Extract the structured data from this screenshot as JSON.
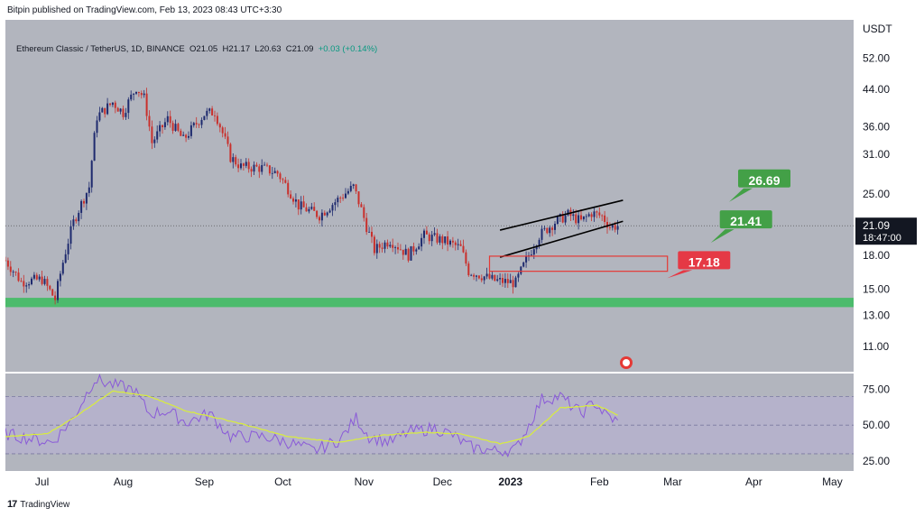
{
  "header": {
    "published": "Bitpin published on TradingView.com, Feb 13, 2023 08:43 UTC+3:30"
  },
  "legend": {
    "symbol": "Ethereum Classic / TetherUS, 1D, BINANCE",
    "o_label": "O",
    "o": "21.05",
    "h_label": "H",
    "h": "21.17",
    "l_label": "L",
    "l": "20.63",
    "c_label": "C",
    "c": "21.09",
    "change": "+0.03 (+0.14%)"
  },
  "footer": {
    "brand": "TradingView"
  },
  "colors": {
    "up": "#1e2a6e",
    "down": "#c9302c",
    "green_zone": "#4cbb6c",
    "red_box": "#e53935",
    "rsi_line": "#8a5ad8",
    "rsi_ma": "#d9ee3a",
    "label_green": "#43a047",
    "label_red": "#e53945"
  },
  "chart_data": [
    {
      "type": "candlestick",
      "pane": "price",
      "y_axis": {
        "title": "USDT",
        "scale": "log",
        "ticks": [
          "52.00",
          "44.00",
          "36.00",
          "31.00",
          "25.00",
          "21.09",
          "18.00",
          "15.00",
          "13.00",
          "11.00"
        ],
        "range": [
          9.6,
          64
        ]
      },
      "x_axis": {
        "ticks": [
          "Jul",
          "Aug",
          "Sep",
          "Oct",
          "Nov",
          "Dec",
          "2023",
          "Feb",
          "Mar",
          "Apr",
          "May"
        ]
      },
      "current_price": "21.09",
      "countdown": "18:47:00",
      "price_keypoints": [
        [
          "2022-06-24",
          17.5
        ],
        [
          "2022-06-30",
          15.6
        ],
        [
          "2022-07-08",
          15.8
        ],
        [
          "2022-07-13",
          14.2
        ],
        [
          "2022-07-20",
          21.5
        ],
        [
          "2022-07-26",
          26.0
        ],
        [
          "2022-07-29",
          38.0
        ],
        [
          "2022-08-04",
          41.0
        ],
        [
          "2022-08-08",
          38.8
        ],
        [
          "2022-08-13",
          44.5
        ],
        [
          "2022-08-16",
          42.0
        ],
        [
          "2022-08-19",
          33.0
        ],
        [
          "2022-08-25",
          37.5
        ],
        [
          "2022-08-31",
          33.5
        ],
        [
          "2022-09-08",
          38.5
        ],
        [
          "2022-09-12",
          39.0
        ],
        [
          "2022-09-18",
          30.5
        ],
        [
          "2022-09-22",
          29.0
        ],
        [
          "2022-09-30",
          28.8
        ],
        [
          "2022-10-06",
          28.0
        ],
        [
          "2022-10-14",
          23.5
        ],
        [
          "2022-10-22",
          22.3
        ],
        [
          "2022-10-28",
          24.0
        ],
        [
          "2022-11-04",
          26.0
        ],
        [
          "2022-11-09",
          21.0
        ],
        [
          "2022-11-12",
          18.5
        ],
        [
          "2022-11-18",
          19.5
        ],
        [
          "2022-11-25",
          18.0
        ],
        [
          "2022-12-01",
          20.0
        ],
        [
          "2022-12-08",
          19.5
        ],
        [
          "2022-12-15",
          18.7
        ],
        [
          "2022-12-18",
          16.5
        ],
        [
          "2022-12-22",
          16.2
        ],
        [
          "2022-12-28",
          15.7
        ],
        [
          "2023-01-05",
          15.5
        ],
        [
          "2023-01-09",
          17.5
        ],
        [
          "2023-01-14",
          20.0
        ],
        [
          "2023-01-20",
          21.5
        ],
        [
          "2023-01-25",
          22.4
        ],
        [
          "2023-01-30",
          21.6
        ],
        [
          "2023-02-03",
          22.6
        ],
        [
          "2023-02-07",
          22.2
        ],
        [
          "2023-02-10",
          21.0
        ],
        [
          "2023-02-13",
          21.09
        ]
      ],
      "annotations": {
        "green_zone": [
          13.6,
          14.3
        ],
        "red_box": {
          "from": "2022-12-26",
          "to": "2023-03-04",
          "low": 16.5,
          "high": 17.9
        },
        "channel": {
          "upper": [
            [
              "2022-12-30",
              20.6
            ],
            [
              "2023-02-15",
              24.2
            ]
          ],
          "lower": [
            [
              "2022-12-30",
              17.8
            ],
            [
              "2023-02-15",
              21.6
            ]
          ]
        },
        "labels": [
          {
            "text": "26.69",
            "color": "green",
            "date": "2023-03-31",
            "price": 26.69
          },
          {
            "text": "21.41",
            "color": "green",
            "date": "2023-03-24",
            "price": 21.41
          },
          {
            "text": "17.18",
            "color": "red",
            "date": "2023-03-08",
            "price": 17.18
          }
        ]
      }
    },
    {
      "type": "line",
      "pane": "rsi",
      "y_axis": {
        "ticks": [
          "75.00",
          "50.00",
          "25.00"
        ],
        "range": [
          18,
          86
        ]
      },
      "band": [
        30,
        70
      ],
      "rsi_keypoints": [
        [
          "2022-06-24",
          44
        ],
        [
          "2022-07-05",
          40
        ],
        [
          "2022-07-12",
          38
        ],
        [
          "2022-07-20",
          55
        ],
        [
          "2022-07-28",
          82
        ],
        [
          "2022-08-04",
          78
        ],
        [
          "2022-08-12",
          75
        ],
        [
          "2022-08-18",
          58
        ],
        [
          "2022-08-25",
          60
        ],
        [
          "2022-09-01",
          52
        ],
        [
          "2022-09-10",
          58
        ],
        [
          "2022-09-18",
          42
        ],
        [
          "2022-10-01",
          42
        ],
        [
          "2022-10-10",
          38
        ],
        [
          "2022-10-20",
          32
        ],
        [
          "2022-10-30",
          40
        ],
        [
          "2022-11-05",
          55
        ],
        [
          "2022-11-10",
          42
        ],
        [
          "2022-11-18",
          38
        ],
        [
          "2022-11-25",
          45
        ],
        [
          "2022-12-05",
          48
        ],
        [
          "2022-12-12",
          43
        ],
        [
          "2022-12-18",
          35
        ],
        [
          "2022-12-28",
          32
        ],
        [
          "2023-01-05",
          33
        ],
        [
          "2023-01-10",
          50
        ],
        [
          "2023-01-15",
          68
        ],
        [
          "2023-01-22",
          70
        ],
        [
          "2023-01-30",
          58
        ],
        [
          "2023-02-04",
          66
        ],
        [
          "2023-02-08",
          58
        ],
        [
          "2023-02-13",
          52
        ]
      ],
      "ma_keypoints": [
        [
          "2022-06-24",
          42
        ],
        [
          "2022-07-10",
          44
        ],
        [
          "2022-07-20",
          55
        ],
        [
          "2022-08-04",
          74
        ],
        [
          "2022-08-18",
          70
        ],
        [
          "2022-09-01",
          60
        ],
        [
          "2022-09-20",
          52
        ],
        [
          "2022-10-10",
          42
        ],
        [
          "2022-10-30",
          38
        ],
        [
          "2022-11-15",
          43
        ],
        [
          "2022-12-01",
          45
        ],
        [
          "2022-12-15",
          44
        ],
        [
          "2022-12-30",
          37
        ],
        [
          "2023-01-10",
          42
        ],
        [
          "2023-01-22",
          62
        ],
        [
          "2023-02-05",
          64
        ],
        [
          "2023-02-13",
          57
        ]
      ]
    }
  ]
}
